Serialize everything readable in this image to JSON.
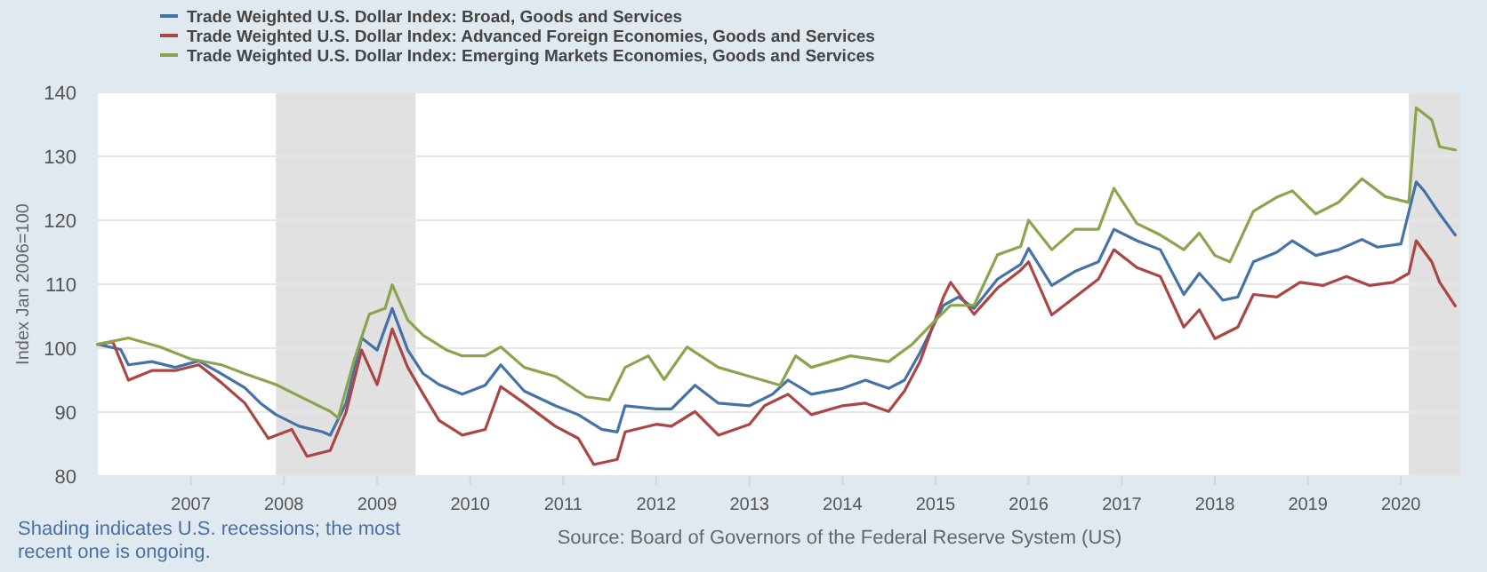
{
  "chart_data": {
    "type": "line",
    "ylabel": "Index Jan 2006=100",
    "xlim": [
      "2006-01",
      "2020-08-21"
    ],
    "ylim": [
      80,
      140
    ],
    "yticks": [
      80,
      90,
      100,
      110,
      120,
      130,
      140
    ],
    "xticks": [
      "2007",
      "2008",
      "2009",
      "2010",
      "2011",
      "2012",
      "2013",
      "2014",
      "2015",
      "2016",
      "2017",
      "2018",
      "2019",
      "2020"
    ],
    "grid": "y",
    "legend": "top left",
    "bands": [
      {
        "axis": "x",
        "from": "2007-12-01",
        "to": "2009-06-01",
        "color": "#e1e1e1"
      },
      {
        "axis": "x",
        "from": "2020-02-01",
        "to": "2020-08-21",
        "color": "#e1e1e1"
      }
    ],
    "annotations": [
      "Shading indicates U.S. recessions; the most recent one is ongoing.",
      "Source: Board of Governors of the Federal Reserve System (US)"
    ],
    "series": [
      {
        "name": "Trade Weighted U.S. Dollar Index: Broad, Goods and Services",
        "color": "#4572a7",
        "x": [
          "2006-01",
          "2006-04",
          "2006-05",
          "2006-08",
          "2006-11",
          "2007-02",
          "2007-05",
          "2007-08",
          "2007-10",
          "2007-12",
          "2008-03",
          "2008-06",
          "2008-07",
          "2008-09",
          "2008-11",
          "2009-01",
          "2009-03",
          "2009-05",
          "2009-07",
          "2009-09",
          "2009-12",
          "2010-03",
          "2010-05",
          "2010-08",
          "2010-12",
          "2011-03",
          "2011-06",
          "2011-08",
          "2011-09",
          "2012-01",
          "2012-03",
          "2012-06",
          "2012-09",
          "2013-01",
          "2013-04",
          "2013-06",
          "2013-09",
          "2014-01",
          "2014-04",
          "2014-07",
          "2014-09",
          "2014-11",
          "2015-02",
          "2015-04",
          "2015-06",
          "2015-09",
          "2015-12",
          "2016-01",
          "2016-04",
          "2016-07",
          "2016-10",
          "2016-12",
          "2017-03",
          "2017-06",
          "2017-09",
          "2017-11",
          "2018-01",
          "2018-02",
          "2018-04",
          "2018-06",
          "2018-09",
          "2018-11",
          "2019-02",
          "2019-05",
          "2019-08",
          "2019-10",
          "2020-01",
          "2020-03",
          "2020-04",
          "2020-06",
          "2020-08"
        ],
        "values": [
          100.6,
          99.8,
          97.4,
          97.9,
          97,
          98,
          96,
          93.8,
          91.4,
          89.6,
          87.8,
          86.9,
          86.4,
          91.4,
          101.6,
          99.7,
          106.2,
          99.7,
          96,
          94.3,
          92.8,
          94.2,
          97.4,
          93.3,
          91,
          89.6,
          87.3,
          86.9,
          91,
          90.5,
          90.5,
          94.2,
          91.4,
          91,
          92.8,
          95,
          92.8,
          93.7,
          95,
          93.7,
          95,
          99.3,
          106.7,
          108,
          106.2,
          110.8,
          113.1,
          115.6,
          109.8,
          112,
          113.5,
          118.6,
          116.8,
          115.4,
          108.4,
          111.7,
          109,
          107.5,
          108,
          113.5,
          115,
          116.8,
          114.5,
          115.4,
          117,
          115.8,
          116.3,
          126,
          124.6,
          121,
          117.7
        ]
      },
      {
        "name": "Trade Weighted U.S. Dollar Index: Advanced Foreign Economies, Goods and Services",
        "color": "#aa4643",
        "x": [
          "2006-01",
          "2006-03",
          "2006-05",
          "2006-08",
          "2006-11",
          "2007-02",
          "2007-05",
          "2007-08",
          "2007-11",
          "2008-02",
          "2008-04",
          "2008-07",
          "2008-09",
          "2008-11",
          "2009-01",
          "2009-03",
          "2009-05",
          "2009-07",
          "2009-09",
          "2009-12",
          "2010-03",
          "2010-05",
          "2010-08",
          "2010-12",
          "2011-03",
          "2011-05",
          "2011-08",
          "2011-09",
          "2012-01",
          "2012-03",
          "2012-06",
          "2012-09",
          "2013-01",
          "2013-03",
          "2013-06",
          "2013-09",
          "2014-01",
          "2014-04",
          "2014-07",
          "2014-09",
          "2014-11",
          "2015-02",
          "2015-03",
          "2015-06",
          "2015-09",
          "2015-12",
          "2016-01",
          "2016-04",
          "2016-07",
          "2016-10",
          "2016-12",
          "2017-03",
          "2017-06",
          "2017-09",
          "2017-11",
          "2018-01",
          "2018-04",
          "2018-06",
          "2018-09",
          "2018-12",
          "2019-03",
          "2019-06",
          "2019-09",
          "2019-12",
          "2020-02",
          "2020-03",
          "2020-05",
          "2020-06",
          "2020-08"
        ],
        "values": [
          100.6,
          101,
          95,
          96.5,
          96.5,
          97.4,
          94.6,
          91.4,
          85.9,
          87.3,
          83.1,
          84,
          90,
          99.7,
          94.3,
          103,
          97,
          92.8,
          88.7,
          86.4,
          87.3,
          94,
          91.4,
          87.8,
          85.9,
          81.8,
          82.6,
          86.9,
          88.1,
          87.8,
          90.1,
          86.4,
          88.1,
          91,
          92.8,
          89.6,
          91,
          91.4,
          90.1,
          93.3,
          97.9,
          108,
          110.3,
          105.3,
          109.4,
          112.2,
          113.5,
          105.2,
          108,
          110.8,
          115.4,
          112.6,
          111.2,
          103.3,
          106,
          101.5,
          103.3,
          108.4,
          108,
          110.3,
          109.8,
          111.2,
          109.8,
          110.3,
          111.7,
          116.8,
          113.5,
          110.3,
          106.6
        ]
      },
      {
        "name": "Trade Weighted U.S. Dollar Index: Emerging Markets Economies, Goods and Services",
        "color": "#89a54e",
        "x": [
          "2006-01",
          "2006-05",
          "2006-09",
          "2007-01",
          "2007-05",
          "2007-08",
          "2007-12",
          "2008-04",
          "2008-07",
          "2008-08",
          "2008-10",
          "2008-12",
          "2009-02",
          "2009-03",
          "2009-05",
          "2009-07",
          "2009-10",
          "2009-12",
          "2010-03",
          "2010-05",
          "2010-08",
          "2010-12",
          "2011-04",
          "2011-07",
          "2011-09",
          "2011-12",
          "2012-02",
          "2012-05",
          "2012-09",
          "2013-01",
          "2013-05",
          "2013-07",
          "2013-09",
          "2014-02",
          "2014-07",
          "2014-10",
          "2015-01",
          "2015-03",
          "2015-06",
          "2015-09",
          "2015-12",
          "2016-01",
          "2016-04",
          "2016-07",
          "2016-10",
          "2016-12",
          "2017-03",
          "2017-06",
          "2017-09",
          "2017-11",
          "2018-01",
          "2018-03",
          "2018-06",
          "2018-09",
          "2018-11",
          "2019-02",
          "2019-05",
          "2019-08",
          "2019-11",
          "2020-02",
          "2020-03",
          "2020-05",
          "2020-06",
          "2020-08"
        ],
        "values": [
          100.6,
          101.6,
          100.2,
          98.3,
          97.4,
          96,
          94.3,
          91.9,
          90.1,
          89.1,
          97.9,
          105.3,
          106.2,
          109.9,
          104.4,
          102,
          99.7,
          98.8,
          98.8,
          100.2,
          97,
          95.6,
          92.4,
          91.9,
          97,
          98.8,
          95.1,
          100.2,
          97,
          95.6,
          94.2,
          98.8,
          97,
          98.8,
          97.9,
          100.6,
          104.4,
          106.7,
          106.7,
          114.6,
          115.9,
          120,
          115.4,
          118.6,
          118.6,
          125,
          119.5,
          117.7,
          115.4,
          118,
          114.5,
          113.5,
          121.4,
          123.6,
          124.6,
          121,
          122.8,
          126.5,
          123.7,
          122.8,
          137.6,
          135.7,
          131.5,
          131
        ]
      }
    ]
  }
}
